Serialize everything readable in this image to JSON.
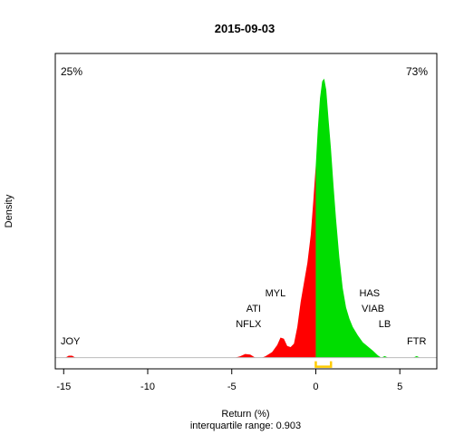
{
  "chart_data": {
    "type": "area",
    "title": "2015-09-03",
    "xlabel": "Return (%)",
    "ylabel": "Density",
    "subtitle": "interquartile range: 0.903",
    "xlim": [
      -15.5,
      7.2
    ],
    "ylim": [
      -0.04,
      1.09
    ],
    "x_ticks": [
      -15,
      -10,
      -5,
      0,
      5
    ],
    "split_at": 0,
    "colors": {
      "negative": "#ff0000",
      "positive": "#00dd00",
      "iqr": "#ffcc00",
      "baseline": "#bbbbbb"
    },
    "left_percent": {
      "text": "25%",
      "color": "#ff0000"
    },
    "right_percent": {
      "text": "73%",
      "color": "#22aa22"
    },
    "iqr": [
      0.0,
      0.903
    ],
    "density": [
      [
        -15.5,
        0.0
      ],
      [
        -14.9,
        0.0
      ],
      [
        -14.7,
        0.007
      ],
      [
        -14.5,
        0.007
      ],
      [
        -14.3,
        0.0
      ],
      [
        -4.8,
        0.0
      ],
      [
        -4.5,
        0.005
      ],
      [
        -4.2,
        0.013
      ],
      [
        -3.9,
        0.011
      ],
      [
        -3.6,
        0.0
      ],
      [
        -3.2,
        0.0
      ],
      [
        -3.0,
        0.005
      ],
      [
        -2.6,
        0.02
      ],
      [
        -2.3,
        0.045
      ],
      [
        -2.1,
        0.072
      ],
      [
        -1.9,
        0.068
      ],
      [
        -1.7,
        0.042
      ],
      [
        -1.5,
        0.038
      ],
      [
        -1.3,
        0.05
      ],
      [
        -1.1,
        0.11
      ],
      [
        -0.9,
        0.2
      ],
      [
        -0.7,
        0.27
      ],
      [
        -0.5,
        0.34
      ],
      [
        -0.3,
        0.44
      ],
      [
        -0.15,
        0.56
      ],
      [
        0.0,
        0.69
      ],
      [
        0.12,
        0.82
      ],
      [
        0.25,
        0.93
      ],
      [
        0.38,
        0.99
      ],
      [
        0.5,
        1.0
      ],
      [
        0.62,
        0.96
      ],
      [
        0.75,
        0.86
      ],
      [
        0.9,
        0.75
      ],
      [
        1.05,
        0.62
      ],
      [
        1.2,
        0.5
      ],
      [
        1.4,
        0.36
      ],
      [
        1.6,
        0.25
      ],
      [
        1.8,
        0.18
      ],
      [
        2.0,
        0.14
      ],
      [
        2.2,
        0.11
      ],
      [
        2.5,
        0.08
      ],
      [
        2.8,
        0.055
      ],
      [
        3.1,
        0.04
      ],
      [
        3.4,
        0.025
      ],
      [
        3.7,
        0.008
      ],
      [
        3.9,
        0.0
      ],
      [
        4.1,
        0.006
      ],
      [
        4.3,
        0.0
      ],
      [
        5.8,
        0.0
      ],
      [
        6.0,
        0.006
      ],
      [
        6.2,
        0.0
      ],
      [
        7.2,
        0.0
      ]
    ],
    "labels": [
      {
        "text": "JOY",
        "x": -14.6,
        "y": 0.048
      },
      {
        "text": "NFLX",
        "x": -4.0,
        "y": 0.11
      },
      {
        "text": "ATI",
        "x": -3.7,
        "y": 0.165
      },
      {
        "text": "MYL",
        "x": -2.4,
        "y": 0.22
      },
      {
        "text": "HAS",
        "x": 3.2,
        "y": 0.22
      },
      {
        "text": "VIAB",
        "x": 3.4,
        "y": 0.165
      },
      {
        "text": "LB",
        "x": 4.1,
        "y": 0.11
      },
      {
        "text": "FTR",
        "x": 6.0,
        "y": 0.048
      }
    ]
  }
}
